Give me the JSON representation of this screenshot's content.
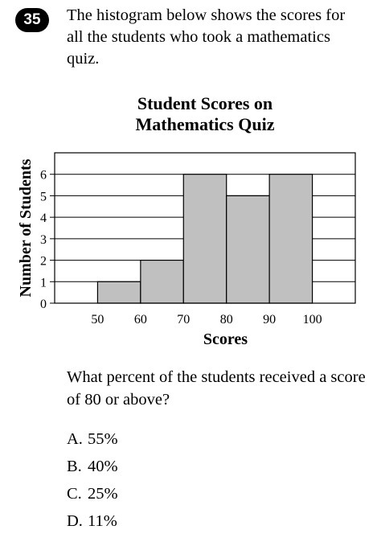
{
  "question": {
    "number": "35",
    "prompt": "The histogram below shows the scores for all the students who took a mathematics quiz.",
    "question_text": "What percent of the students received a score of 80 or above?"
  },
  "choices": [
    {
      "letter": "A.",
      "text": "55%"
    },
    {
      "letter": "B.",
      "text": "40%"
    },
    {
      "letter": "C.",
      "text": "25%"
    },
    {
      "letter": "D.",
      "text": "11%"
    }
  ],
  "chart_data": {
    "type": "bar",
    "title_line1": "Student Scores on",
    "title_line2": "Mathematics Quiz",
    "xlabel": "Scores",
    "ylabel": "Number of Students",
    "x_ticks": [
      50,
      60,
      70,
      80,
      90,
      100
    ],
    "y_ticks": [
      0,
      1,
      2,
      3,
      4,
      5,
      6
    ],
    "bins": [
      [
        50,
        60
      ],
      [
        60,
        70
      ],
      [
        70,
        80
      ],
      [
        80,
        90
      ],
      [
        90,
        100
      ]
    ],
    "values": [
      1,
      2,
      6,
      5,
      6
    ],
    "xlim": [
      40,
      110
    ],
    "ylim": [
      0,
      7
    ],
    "grid": true,
    "bar_color": "#c0c0c0"
  }
}
